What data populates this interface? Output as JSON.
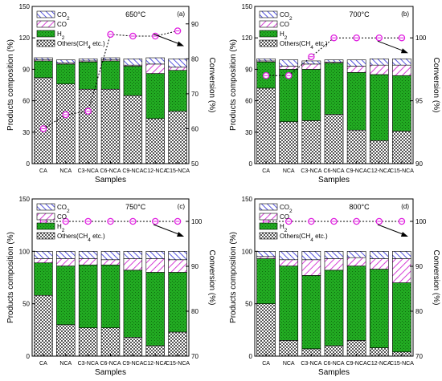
{
  "panels": [
    {
      "id": "a",
      "temp_label": "650°C",
      "panel_tag": "(a)",
      "ylabel": "Products composition (%)",
      "y2label": "Conversion (%)",
      "xlabel": "Samples",
      "categories": [
        "CA",
        "NCA",
        "C3-NCA",
        "C6-NCA",
        "C9-NCA",
        "C12-NCA",
        "C15-NCA"
      ],
      "yticks": [
        "0",
        "30",
        "60",
        "90",
        "120",
        "150"
      ],
      "y2ticks": [
        "50",
        "60",
        "70",
        "80",
        "90"
      ],
      "legend": [
        "CO2",
        "CO",
        "H2",
        "Others(CH4 etc.)"
      ]
    },
    {
      "id": "b",
      "temp_label": "700°C",
      "panel_tag": "(b)",
      "ylabel": "Products composition (%)",
      "y2label": "Conversion (%)",
      "xlabel": "Samples",
      "categories": [
        "CA",
        "NCA",
        "C3-NCA",
        "C6-NCA",
        "C9-NCA",
        "C12-NCA",
        "C15-NCA"
      ],
      "yticks": [
        "0",
        "30",
        "60",
        "90",
        "120",
        "150"
      ],
      "y2ticks": [
        "90",
        "95",
        "100"
      ],
      "legend": [
        "CO2",
        "CO",
        "H2",
        "Others(CH4 etc.)"
      ]
    },
    {
      "id": "c",
      "temp_label": "750°C",
      "panel_tag": "(c)",
      "ylabel": "Products composition (%)",
      "y2label": "Conversion (%)",
      "xlabel": "Samples",
      "categories": [
        "CA",
        "NCA",
        "C3-NCA",
        "C6-NCA",
        "C9-NCA",
        "C12-NCA",
        "C15-NCA"
      ],
      "yticks": [
        "0",
        "50",
        "100",
        "150"
      ],
      "y2ticks": [
        "70",
        "80",
        "90",
        "100"
      ],
      "legend": [
        "CO2",
        "CO",
        "H2",
        "Others(CH4 etc.)"
      ]
    },
    {
      "id": "d",
      "temp_label": "800°C",
      "panel_tag": "(d)",
      "ylabel": "Products composition (%)",
      "y2label": "Conversion (%)",
      "xlabel": "Samples",
      "categories": [
        "CA",
        "NCA",
        "C3-NCA",
        "C6-NCA",
        "C9-NCA",
        "C12-NCA",
        "C15-NCA"
      ],
      "yticks": [
        "0",
        "50",
        "100",
        "150"
      ],
      "y2ticks": [
        "70",
        "80",
        "90",
        "100"
      ],
      "legend": [
        "CO2",
        "CO",
        "H2",
        "Others(CH4 etc.)"
      ]
    }
  ],
  "chart_data": [
    {
      "type": "bar",
      "title": "650°C",
      "categories": [
        "CA",
        "NCA",
        "C3-NCA",
        "C6-NCA",
        "C9-NCA",
        "C12-NCA",
        "C15-NCA"
      ],
      "ylim": [
        0,
        150
      ],
      "y2lim": [
        50,
        95
      ],
      "xlabel": "Samples",
      "ylabel": "Products composition (%)",
      "y2label": "Conversion (%)",
      "stacked": true,
      "series": [
        {
          "name": "Others(CH4 etc.)",
          "values": [
            82,
            76,
            71,
            71,
            65,
            43,
            50
          ]
        },
        {
          "name": "H2",
          "values": [
            16,
            19,
            26,
            27,
            28,
            43,
            39
          ]
        },
        {
          "name": "CO",
          "values": [
            1,
            1,
            1,
            1,
            1,
            9,
            3
          ]
        },
        {
          "name": "CO2",
          "values": [
            2,
            3,
            2,
            2,
            6,
            6,
            8
          ]
        },
        {
          "name": "Conversion",
          "axis": "right",
          "values": [
            60,
            64,
            65,
            87,
            86.5,
            86.5,
            88
          ]
        }
      ]
    },
    {
      "type": "bar",
      "title": "700°C",
      "categories": [
        "CA",
        "NCA",
        "C3-NCA",
        "C6-NCA",
        "C9-NCA",
        "C12-NCA",
        "C15-NCA"
      ],
      "ylim": [
        0,
        150
      ],
      "y2lim": [
        90,
        102.5
      ],
      "xlabel": "Samples",
      "ylabel": "Products composition (%)",
      "y2label": "Conversion (%)",
      "stacked": true,
      "series": [
        {
          "name": "Others(CH4 etc.)",
          "values": [
            72,
            40,
            41,
            47,
            32,
            22,
            31
          ]
        },
        {
          "name": "H2",
          "values": [
            25,
            50,
            49,
            49,
            55,
            63,
            53
          ]
        },
        {
          "name": "CO",
          "values": [
            1,
            3,
            5,
            1,
            6,
            9,
            10
          ]
        },
        {
          "name": "CO2",
          "values": [
            2,
            6,
            3,
            2,
            6,
            6,
            6
          ]
        },
        {
          "name": "Conversion",
          "axis": "right",
          "values": [
            97,
            97,
            98.5,
            100,
            100,
            100,
            100
          ]
        }
      ]
    },
    {
      "type": "bar",
      "title": "750°C",
      "categories": [
        "CA",
        "NCA",
        "C3-NCA",
        "C6-NCA",
        "C9-NCA",
        "C12-NCA",
        "C15-NCA"
      ],
      "ylim": [
        0,
        150
      ],
      "y2lim": [
        70,
        105
      ],
      "xlabel": "Samples",
      "ylabel": "Products composition (%)",
      "y2label": "Conversion (%)",
      "stacked": true,
      "series": [
        {
          "name": "Others(CH4 etc.)",
          "values": [
            58,
            30,
            27,
            27,
            18,
            10,
            23
          ]
        },
        {
          "name": "H2",
          "values": [
            31,
            56,
            60,
            60,
            64,
            70,
            57
          ]
        },
        {
          "name": "CO",
          "values": [
            4,
            7,
            6,
            5,
            11,
            13,
            12
          ]
        },
        {
          "name": "CO2",
          "values": [
            7,
            7,
            7,
            8,
            7,
            7,
            8
          ]
        },
        {
          "name": "Conversion",
          "axis": "right",
          "values": [
            100,
            100,
            100,
            100,
            100,
            100,
            100
          ]
        }
      ]
    },
    {
      "type": "bar",
      "title": "800°C",
      "categories": [
        "CA",
        "NCA",
        "C3-NCA",
        "C6-NCA",
        "C9-NCA",
        "C12-NCA",
        "C15-NCA"
      ],
      "ylim": [
        0,
        150
      ],
      "y2lim": [
        70,
        105
      ],
      "xlabel": "Samples",
      "ylabel": "Products composition (%)",
      "y2label": "Conversion (%)",
      "stacked": true,
      "series": [
        {
          "name": "Others(CH4 etc.)",
          "values": [
            50,
            15,
            7,
            10,
            15,
            8,
            4
          ]
        },
        {
          "name": "H2",
          "values": [
            43,
            71,
            70,
            72,
            71,
            75,
            66
          ]
        },
        {
          "name": "CO",
          "values": [
            2,
            6,
            15,
            11,
            8,
            10,
            23
          ]
        },
        {
          "name": "CO2",
          "values": [
            5,
            8,
            8,
            7,
            6,
            7,
            7
          ]
        },
        {
          "name": "Conversion",
          "axis": "right",
          "values": [
            100,
            100,
            100,
            100,
            100,
            100,
            100
          ]
        }
      ]
    }
  ],
  "colors": {
    "others": "#555555",
    "h2": "#22aa22",
    "co": "#d63fd6",
    "co2": "#2a2ad6",
    "conversion": "#e020e0"
  }
}
